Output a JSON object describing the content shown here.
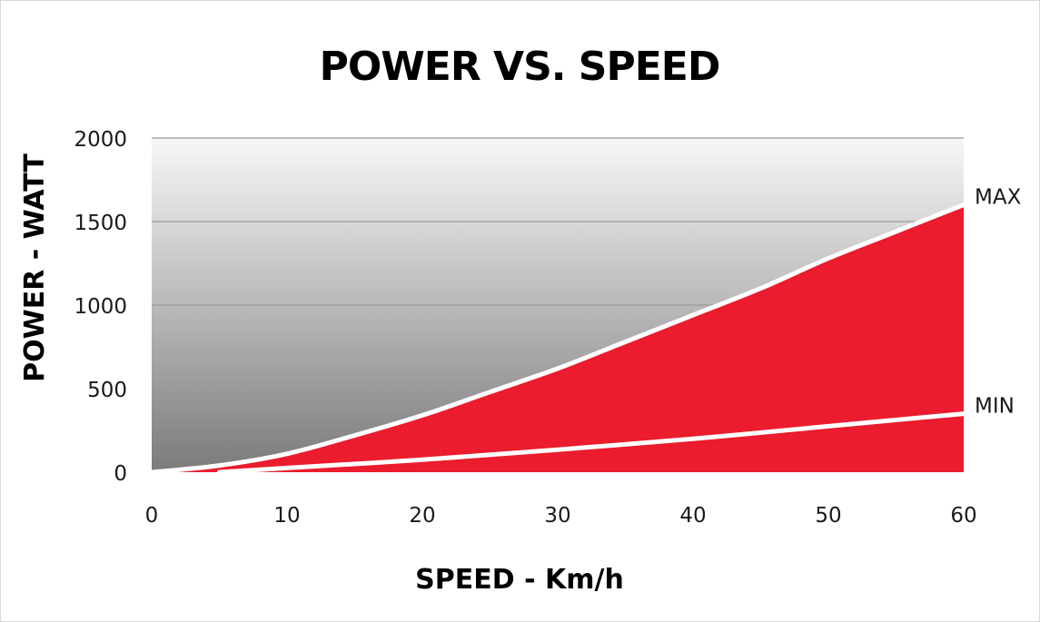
{
  "chart_data": {
    "type": "area",
    "title": "POWER VS. SPEED",
    "xlabel": "SPEED - Km/h",
    "ylabel": "POWER - WATT",
    "xlim": [
      0,
      60
    ],
    "ylim": [
      0,
      2000
    ],
    "x_ticks": [
      0,
      10,
      20,
      30,
      40,
      50,
      60
    ],
    "y_ticks": [
      0,
      500,
      1000,
      1500,
      2000
    ],
    "grid": true,
    "colors": {
      "fill": "#ea1c2d",
      "curve": "#ffffff",
      "background_top": "#f7f7f7",
      "background_bottom": "#7b7b7b",
      "grid": "#9a9a9a"
    },
    "series": [
      {
        "name": "MAX",
        "x": [
          0,
          5,
          10,
          15,
          20,
          25,
          30,
          35,
          40,
          45,
          50,
          55,
          60
        ],
        "y": [
          0,
          40,
          110,
          220,
          340,
          480,
          620,
          780,
          940,
          1100,
          1280,
          1440,
          1600
        ]
      },
      {
        "name": "MIN",
        "x": [
          5,
          10,
          20,
          30,
          40,
          50,
          60
        ],
        "y": [
          0,
          25,
          75,
          135,
          200,
          275,
          350
        ]
      }
    ]
  }
}
